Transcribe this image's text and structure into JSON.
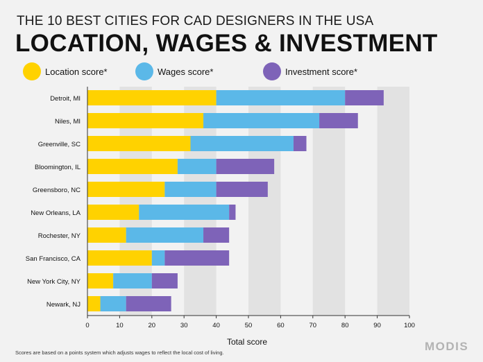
{
  "header": {
    "subtitle": "THE 10 BEST CITIES FOR CAD DESIGNERS IN THE USA",
    "title": "LOCATION, WAGES & INVESTMENT"
  },
  "colors": {
    "location": "#ffd200",
    "wages": "#5bb8e8",
    "investment": "#7e63b8",
    "band": "#e2e2e2",
    "background": "#f2f2f2"
  },
  "chart_data": {
    "type": "bar",
    "orientation": "horizontal",
    "stacked": true,
    "categories": [
      "Detroit, MI",
      "Niles, MI",
      "Greenville, SC",
      "Bloomington, IL",
      "Greensboro, NC",
      "New Orleans, LA",
      "Rochester, NY",
      "San Francisco, CA",
      "New York City, NY",
      "Newark, NJ"
    ],
    "series": [
      {
        "name": "Location score*",
        "values": [
          40,
          36,
          32,
          28,
          24,
          16,
          12,
          20,
          8,
          4
        ]
      },
      {
        "name": "Wages score*",
        "values": [
          40,
          36,
          32,
          12,
          16,
          28,
          24,
          4,
          12,
          8
        ]
      },
      {
        "name": "Investment score*",
        "values": [
          12,
          12,
          4,
          18,
          16,
          2,
          8,
          20,
          8,
          14
        ]
      }
    ],
    "xlabel": "Total score",
    "xlim": [
      0,
      100
    ],
    "xticks": [
      0,
      10,
      20,
      30,
      40,
      50,
      60,
      70,
      80,
      90,
      100
    ],
    "legend_position": "top"
  },
  "footnote": "Scores are based on a points system which adjusts wages to reflect the local cost of living.",
  "brand": "MODIS"
}
